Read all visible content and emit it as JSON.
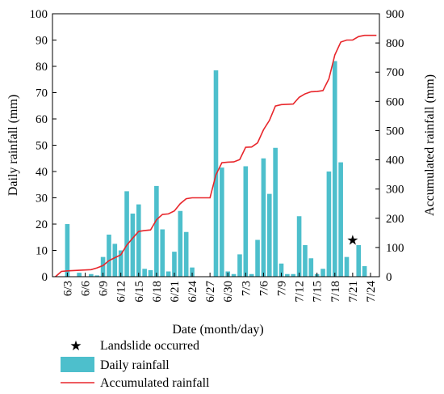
{
  "chart_data": {
    "type": "bar+line",
    "xlabel": "Date (month/day)",
    "ylabel_left": "Daily rainfall (mm)",
    "ylabel_right": "Accumulated rainfall (mm)",
    "ylim_left": [
      0,
      100
    ],
    "ylim_right": [
      0,
      900
    ],
    "yticks_left": [
      "0",
      "10",
      "20",
      "30",
      "40",
      "50",
      "60",
      "70",
      "80",
      "90",
      "100"
    ],
    "yticks_right": [
      "0",
      "100",
      "200",
      "300",
      "400",
      "500",
      "600",
      "700",
      "800",
      "900"
    ],
    "dates": [
      "6/1",
      "6/2",
      "6/3",
      "6/4",
      "6/5",
      "6/6",
      "6/7",
      "6/8",
      "6/9",
      "6/10",
      "6/11",
      "6/12",
      "6/13",
      "6/14",
      "6/15",
      "6/16",
      "6/17",
      "6/18",
      "6/19",
      "6/20",
      "6/21",
      "6/22",
      "6/23",
      "6/24",
      "6/25",
      "6/26",
      "6/27",
      "6/28",
      "6/29",
      "6/30",
      "7/1",
      "7/2",
      "7/3",
      "7/4",
      "7/5",
      "7/6",
      "7/7",
      "7/8",
      "7/9",
      "7/10",
      "7/11",
      "7/12",
      "7/13",
      "7/14",
      "7/15",
      "7/16",
      "7/17",
      "7/18",
      "7/19",
      "7/20",
      "7/21",
      "7/22",
      "7/23",
      "7/24",
      "7/25"
    ],
    "tick_labels": [
      "6/3",
      "6/6",
      "6/9",
      "6/12",
      "6/15",
      "6/18",
      "6/21",
      "6/24",
      "6/27",
      "6/30",
      "7/3",
      "7/6",
      "7/9",
      "7/12",
      "7/15",
      "7/18",
      "7/21",
      "7/24"
    ],
    "grid": false,
    "legend_position": "bottom-left",
    "series": [
      {
        "name": "Daily rainfall",
        "type": "bar",
        "axis": "left",
        "color": "#4dbfcc",
        "values": [
          0,
          0,
          20,
          0,
          1.5,
          0,
          1,
          0.5,
          7.5,
          16,
          12.5,
          10,
          32.5,
          24,
          27.5,
          3,
          2.5,
          34.5,
          18,
          2,
          9.5,
          25,
          17,
          3.5,
          0,
          0,
          0,
          78.5,
          41.5,
          2,
          1,
          8.5,
          42,
          1,
          14,
          45,
          31.5,
          49,
          5,
          1,
          1,
          23,
          12,
          7,
          1,
          3,
          40,
          82,
          43.5,
          7.5,
          0,
          12,
          4,
          0,
          0
        ]
      },
      {
        "name": "Accumulated rainfall",
        "type": "line",
        "axis": "right",
        "color": "#e8262b",
        "values": [
          0,
          18,
          20,
          21,
          22,
          23,
          24,
          30,
          38,
          55,
          65,
          75,
          108,
          132,
          155,
          158,
          160,
          195,
          213,
          215,
          225,
          250,
          267,
          270,
          270,
          270,
          270,
          349,
          390,
          392,
          393,
          401,
          443,
          444,
          458,
          503,
          535,
          584,
          589,
          590,
          591,
          614,
          626,
          633,
          634,
          637,
          677,
          759,
          803,
          810,
          810,
          822,
          826,
          826,
          826
        ]
      }
    ],
    "annotations": [
      {
        "label": "Landslide occurred",
        "symbol": "star",
        "color": "#ff0000",
        "date": "7/21",
        "y": 14
      }
    ]
  }
}
